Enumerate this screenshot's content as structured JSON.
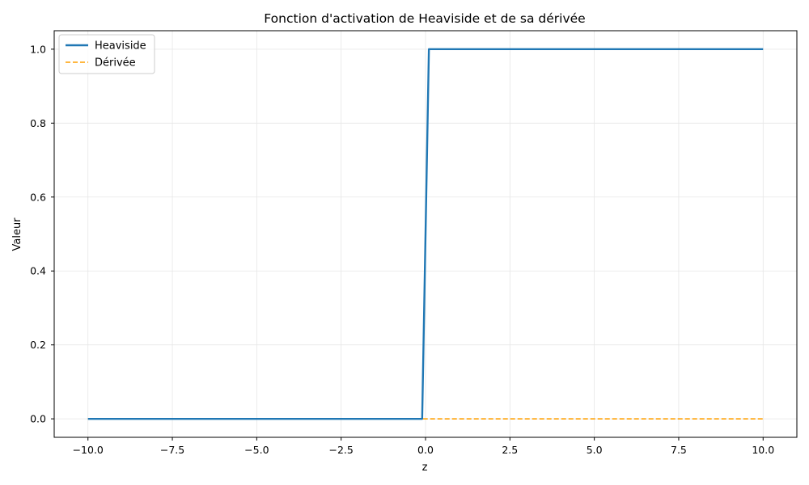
{
  "chart_data": {
    "type": "line",
    "title": "Fonction d'activation de Heaviside et de sa dérivée",
    "xlabel": "z",
    "ylabel": "Valeur",
    "xlim": [
      -11,
      11
    ],
    "ylim": [
      -0.05,
      1.05
    ],
    "xticks": [
      -10,
      -7.5,
      -5,
      -2.5,
      0,
      2.5,
      5,
      7.5,
      10
    ],
    "xtick_labels": [
      "−10.0",
      "−7.5",
      "−5.0",
      "−2.5",
      "0.0",
      "2.5",
      "5.0",
      "7.5",
      "10.0"
    ],
    "yticks": [
      0,
      0.2,
      0.4,
      0.6,
      0.8,
      1.0
    ],
    "ytick_labels": [
      "0.0",
      "0.2",
      "0.4",
      "0.6",
      "0.8",
      "1.0"
    ],
    "grid": true,
    "legend_position": "top-left",
    "series": [
      {
        "name": "Heaviside",
        "color": "#1f77b4",
        "style": "solid",
        "x": [
          -10,
          -0.1,
          0.1,
          10
        ],
        "y": [
          0,
          0,
          1,
          1
        ]
      },
      {
        "name": "Dérivée",
        "color": "#ff9f00",
        "style": "dashed",
        "x": [
          -10,
          10
        ],
        "y": [
          0,
          0
        ]
      }
    ]
  }
}
